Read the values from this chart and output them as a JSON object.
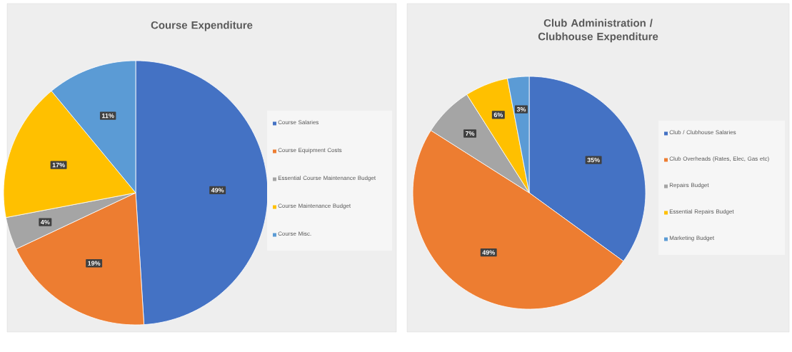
{
  "chart_data": [
    {
      "type": "pie",
      "title": "Course Expenditure",
      "categories": [
        "Course Salaries",
        "Course Equipment Costs",
        "Essential Course Maintenance Budget",
        "Course Maintenance Budget",
        "Course Misc."
      ],
      "values": [
        49,
        19,
        4,
        17,
        11
      ],
      "value_labels": [
        "49%",
        "19%",
        "4%",
        "17%",
        "11%"
      ],
      "colors": [
        "#4472c4",
        "#ed7d31",
        "#a5a5a5",
        "#ffc000",
        "#5b9bd5"
      ],
      "legend": "right"
    },
    {
      "type": "pie",
      "title": "Club Administration / Clubhouse Expenditure",
      "categories": [
        "Club / Clubhouse Salaries",
        "Club Overheads (Rates, Elec, Gas etc)",
        "Repairs Budget",
        "Essential Repairs Budget",
        "Marketing Budget"
      ],
      "values": [
        35,
        49,
        7,
        6,
        3
      ],
      "value_labels": [
        "35%",
        "49%",
        "7%",
        "6%",
        "3%"
      ],
      "colors": [
        "#4472c4",
        "#ed7d31",
        "#a5a5a5",
        "#ffc000",
        "#5b9bd5"
      ],
      "legend": "right"
    }
  ]
}
